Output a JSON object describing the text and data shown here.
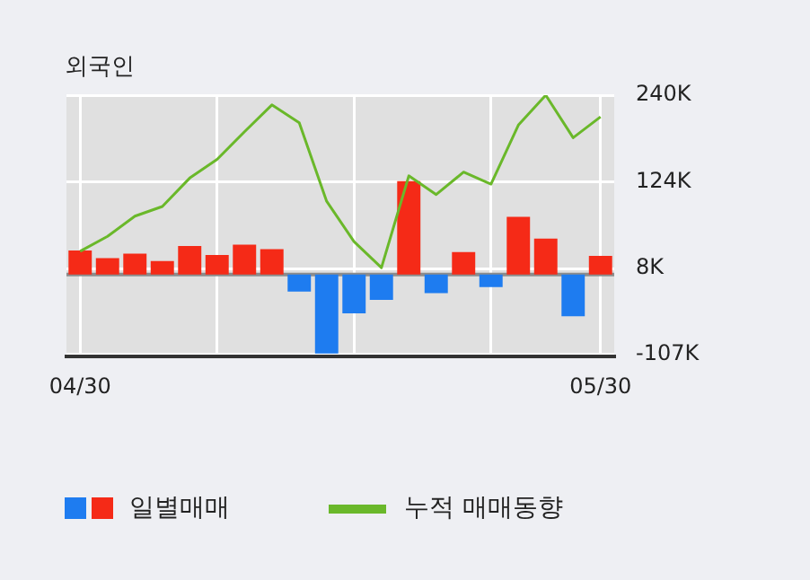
{
  "chart_data": {
    "type": "bar",
    "title": "외국인",
    "categories": [
      "04/30",
      null,
      null,
      null,
      null,
      null,
      null,
      null,
      null,
      null,
      null,
      null,
      null,
      null,
      null,
      null,
      null,
      null,
      null,
      "05/30"
    ],
    "series": [
      {
        "name": "일별매매",
        "values": [
          32000,
          22000,
          28000,
          18000,
          38000,
          26000,
          40000,
          34000,
          -23000,
          -106000,
          -52000,
          -34000,
          125000,
          -25000,
          30000,
          -17000,
          77000,
          48000,
          -56000,
          25000
        ],
        "colors": [
          "#f52a17",
          "#f52a17",
          "#f52a17",
          "#f52a17",
          "#f52a17",
          "#f52a17",
          "#f52a17",
          "#f52a17",
          "#1e7cf0",
          "#1e7cf0",
          "#1e7cf0",
          "#1e7cf0",
          "#f52a17",
          "#1e7cf0",
          "#f52a17",
          "#1e7cf0",
          "#f52a17",
          "#f52a17",
          "#1e7cf0",
          "#f52a17"
        ]
      },
      {
        "name": "누적 매매동향",
        "type": "line",
        "color": "#6ab82a",
        "values": [
          31000,
          51000,
          78000,
          91000,
          129000,
          154000,
          191000,
          227000,
          203000,
          98000,
          44000,
          9000,
          132000,
          107000,
          137000,
          121000,
          200000,
          240000,
          183000,
          211000
        ]
      }
    ],
    "ylim": [
      -110000,
      240000
    ],
    "yticks": [
      {
        "value": 240000,
        "label": "240K"
      },
      {
        "value": 124000,
        "label": "124K"
      },
      {
        "value": 8000,
        "label": "8K"
      },
      {
        "value": -107000,
        "label": "-107K"
      }
    ],
    "grid": true,
    "legend": "bottom",
    "marker": "none"
  }
}
